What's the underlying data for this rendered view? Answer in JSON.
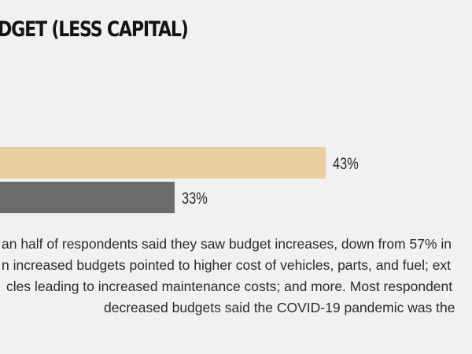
{
  "title": "DGET (LESS CAPITAL)",
  "colors": {
    "background": "#f1f1f3",
    "bar_increase": "#e9cf9f",
    "bar_decrease": "#6b6b6c"
  },
  "chart_data": {
    "type": "bar",
    "orientation": "horizontal",
    "title": "DGET (LESS CAPITAL)",
    "categories": [
      "",
      ""
    ],
    "values": [
      43,
      33
    ],
    "value_labels": [
      "43%",
      "33%"
    ],
    "unit": "%",
    "xlabel": "",
    "ylabel": "",
    "xlim": [
      0,
      100
    ],
    "grid": false
  },
  "caption": {
    "lines": [
      "an half of respondents said they saw budget increases, down from 57% in",
      "n increased budgets pointed to higher cost of vehicles, parts, and fuel; ext",
      "cles leading to increased maintenance costs; and more. Most respondent",
      "decreased budgets said the COVID-19 pandemic was the"
    ]
  }
}
